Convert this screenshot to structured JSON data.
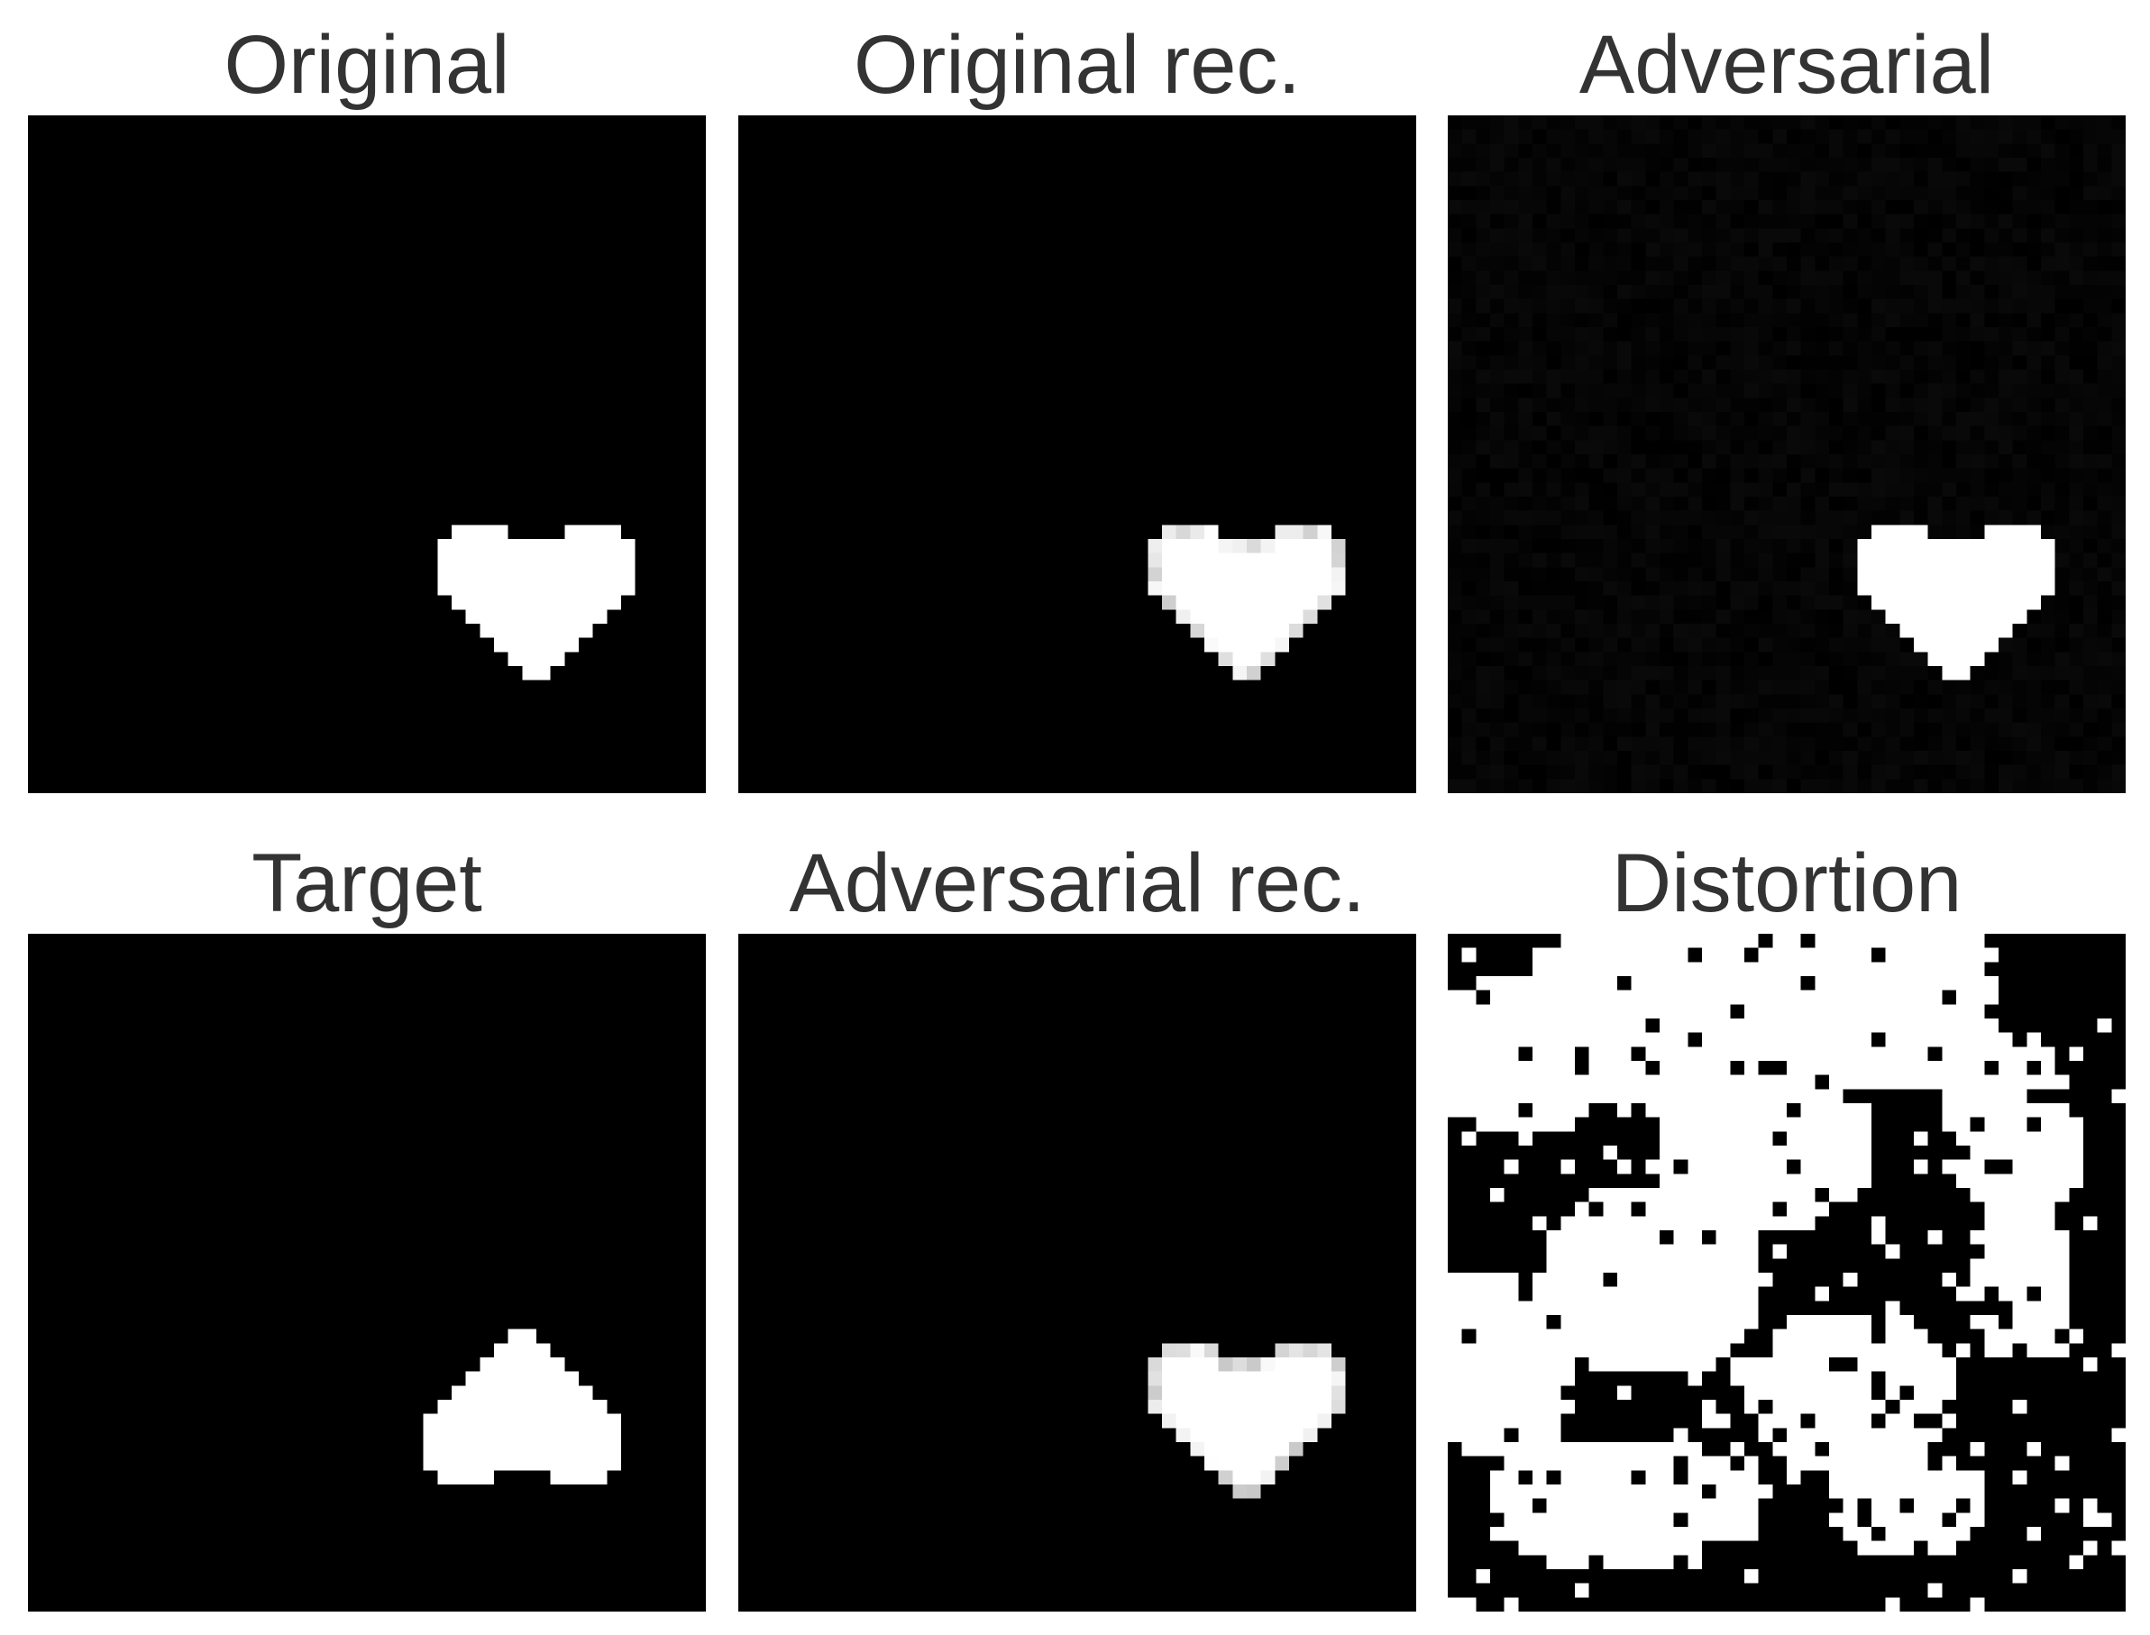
{
  "figure": {
    "panels": [
      {
        "id": "original",
        "title": "Original",
        "image": "heart-upright",
        "style": "binary"
      },
      {
        "id": "original-rec",
        "title": "Original rec.",
        "image": "heart-upright",
        "style": "reconstruction"
      },
      {
        "id": "adversarial",
        "title": "Adversarial",
        "image": "heart-upright",
        "style": "adversarial-noise"
      },
      {
        "id": "target",
        "title": "Target",
        "image": "heart-inverted",
        "style": "binary"
      },
      {
        "id": "adversarial-rec",
        "title": "Adversarial rec.",
        "image": "heart-upright",
        "style": "reconstruction"
      },
      {
        "id": "distortion",
        "title": "Distortion",
        "image": "binary-distortion-map",
        "style": "distortion"
      }
    ],
    "colors": {
      "background": "#000000",
      "foreground": "#ffffff",
      "title": "#333333"
    }
  }
}
